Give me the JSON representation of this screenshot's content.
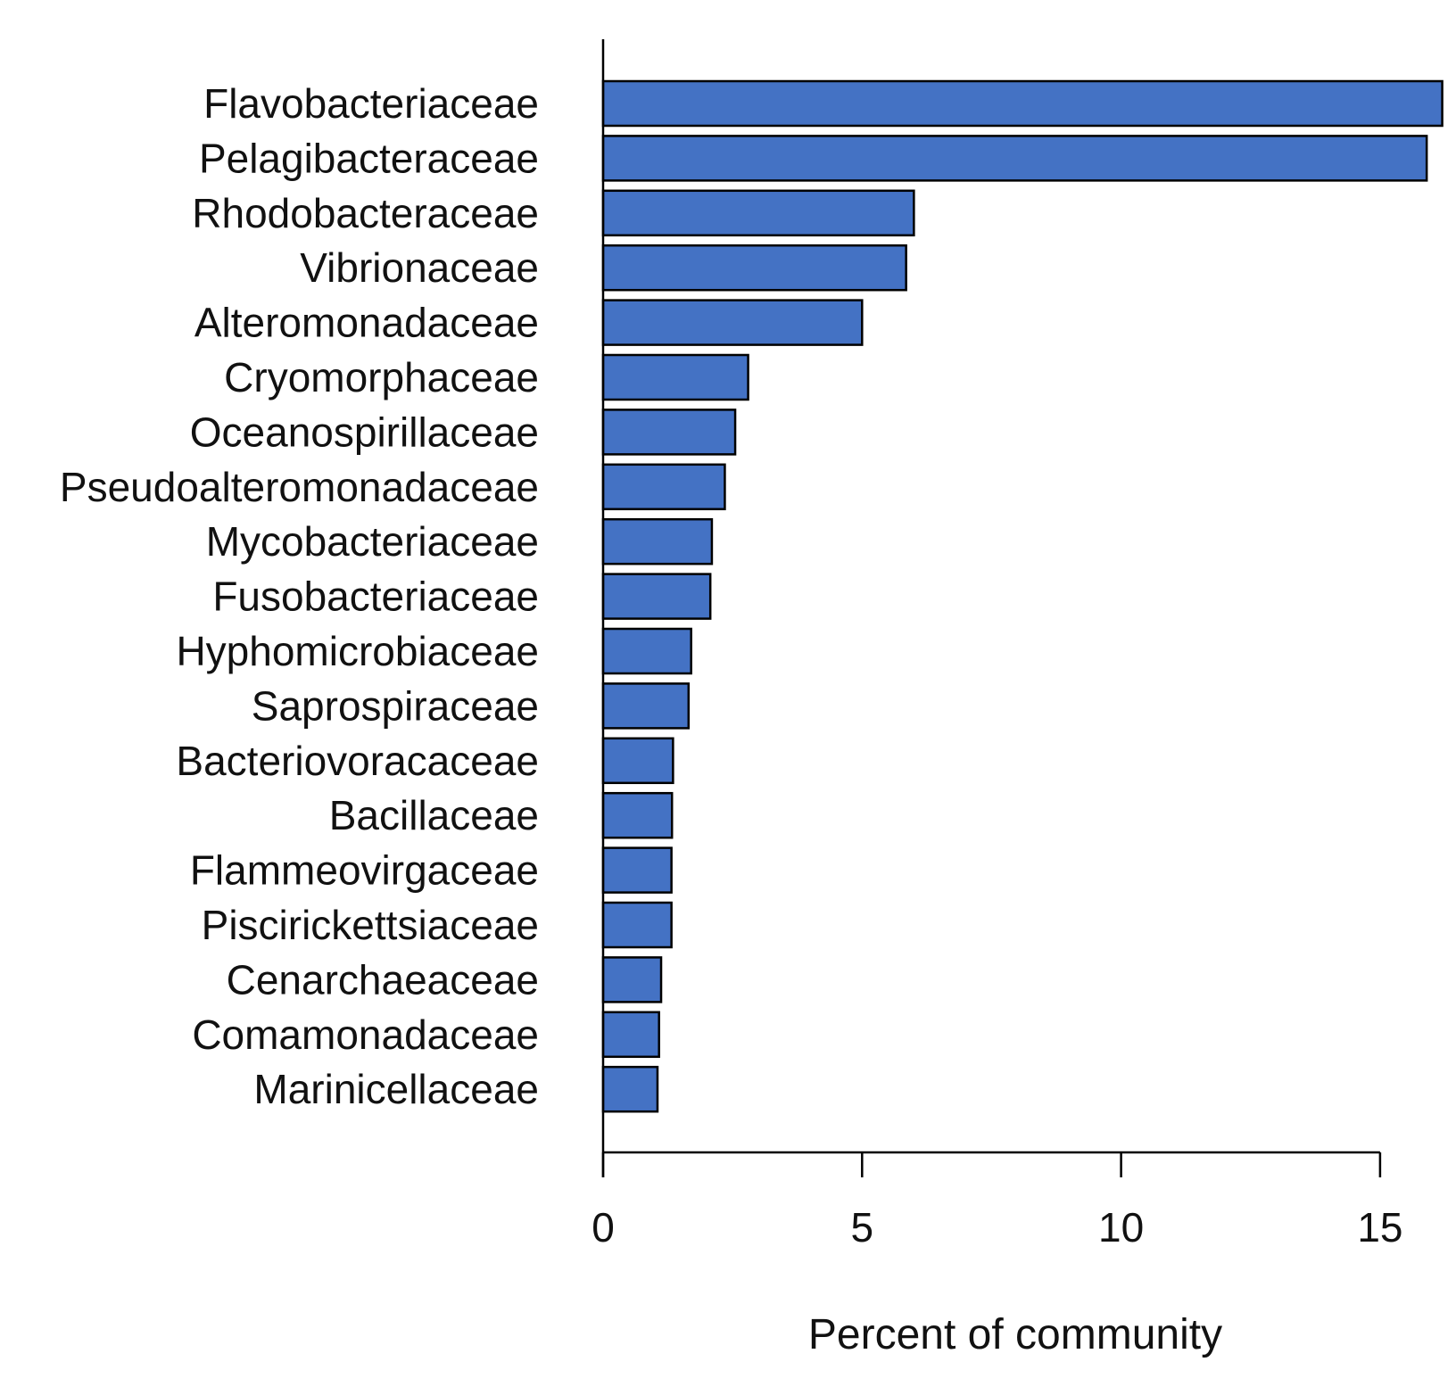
{
  "chart_data": {
    "type": "bar",
    "orientation": "horizontal",
    "categories": [
      "Flavobacteriaceae",
      "Pelagibacteraceae",
      "Rhodobacteraceae",
      "Vibrionaceae",
      "Alteromonadaceae",
      "Cryomorphaceae",
      "Oceanospirillaceae",
      "Pseudoalteromonadaceae",
      "Mycobacteriaceae",
      "Fusobacteriaceae",
      "Hyphomicrobiaceae",
      "Saprospiraceae",
      "Bacteriovoracaceae",
      "Bacillaceae",
      "Flammeovirgaceae",
      "Piscirickettsiaceae",
      "Cenarchaeaceae",
      "Comamonadaceae",
      "Marinicellaceae"
    ],
    "values": [
      16.2,
      15.9,
      6.0,
      5.85,
      5.0,
      2.8,
      2.55,
      2.35,
      2.1,
      2.07,
      1.7,
      1.65,
      1.35,
      1.33,
      1.32,
      1.32,
      1.12,
      1.08,
      1.05
    ],
    "xlabel": "Percent of community",
    "ylabel": "",
    "title": "",
    "xlim": [
      0,
      16.2
    ],
    "xticks": [
      0,
      5,
      10,
      15
    ],
    "bar_color": "#4472c4",
    "bar_edge_color": "#000000",
    "grid": false,
    "legend": "none"
  }
}
